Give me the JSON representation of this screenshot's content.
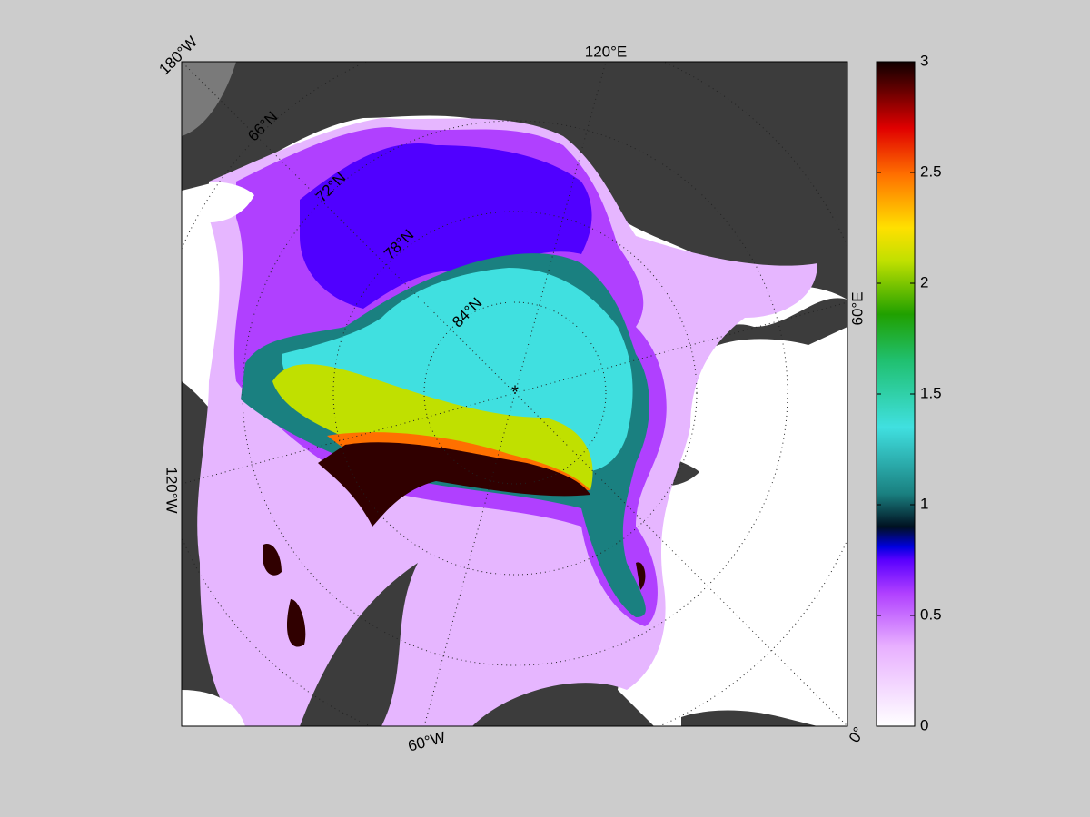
{
  "map": {
    "longitude_labels": [
      "180°W",
      "120°E",
      "60°E",
      "0°",
      "60°W",
      "120°W"
    ],
    "latitude_labels": [
      "66°N",
      "72°N",
      "78°N",
      "84°N"
    ]
  },
  "colorbar": {
    "lim": [
      0,
      3
    ],
    "ticks": [
      0,
      0.5,
      1,
      1.5,
      2,
      2.5,
      3
    ]
  }
}
